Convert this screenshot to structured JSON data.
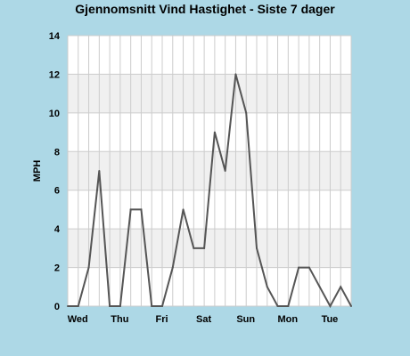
{
  "chart_data": {
    "type": "line",
    "title": "Gjennomsnitt Vind Hastighet - Siste 7 dager",
    "ylabel": "MPH",
    "xlabel": "",
    "ylim": [
      0,
      14
    ],
    "yticks": [
      0,
      2,
      4,
      6,
      8,
      10,
      12,
      14
    ],
    "grid": true,
    "legend": "none",
    "x_tick_labels": [
      "Wed",
      "Thu",
      "Fri",
      "Sat",
      "Sun",
      "Mon",
      "Tue"
    ],
    "x_tick_index": [
      1,
      5,
      9,
      13,
      17,
      21,
      25
    ],
    "series": [
      {
        "values": [
          0,
          0,
          2,
          7,
          0,
          0,
          5,
          5,
          0,
          0,
          2,
          5,
          3,
          3,
          9,
          7,
          12,
          10,
          3,
          1,
          0,
          0,
          2,
          2,
          1,
          0,
          1,
          0
        ]
      }
    ],
    "colors": {
      "line": "#555555",
      "band": "#F0F0F0",
      "plot_bg": "#FFFFFF",
      "grid": "#CCCCCC",
      "page_bg": "#ADD8E6"
    }
  }
}
